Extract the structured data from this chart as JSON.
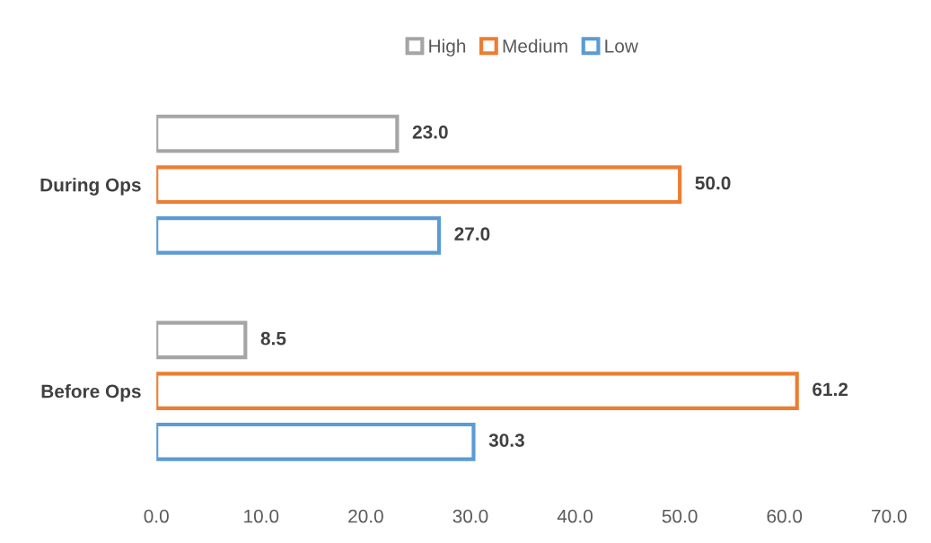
{
  "chart_data": {
    "type": "bar",
    "orientation": "horizontal",
    "categories": [
      "During Ops",
      "Before Ops"
    ],
    "series": [
      {
        "name": "High",
        "color": "#a5a5a5",
        "values": [
          23.0,
          8.5
        ],
        "value_labels": [
          "23.0",
          "8.5"
        ]
      },
      {
        "name": "Medium",
        "color": "#ed7d31",
        "values": [
          50.0,
          61.2
        ],
        "value_labels": [
          "50.0",
          "61.2"
        ]
      },
      {
        "name": "Low",
        "color": "#5b9bd5",
        "values": [
          27.0,
          30.3
        ],
        "value_labels": [
          "27.0",
          "30.3"
        ]
      }
    ],
    "xlim": [
      0,
      70
    ],
    "xticks": [
      {
        "value": 0,
        "label": "0.0"
      },
      {
        "value": 10,
        "label": "10.0"
      },
      {
        "value": 20,
        "label": "20.0"
      },
      {
        "value": 30,
        "label": "30.0"
      },
      {
        "value": 40,
        "label": "40.0"
      },
      {
        "value": 50,
        "label": "50.0"
      },
      {
        "value": 60,
        "label": "60.0"
      },
      {
        "value": 70,
        "label": "70.0"
      }
    ],
    "grid": false,
    "legend": "top"
  }
}
